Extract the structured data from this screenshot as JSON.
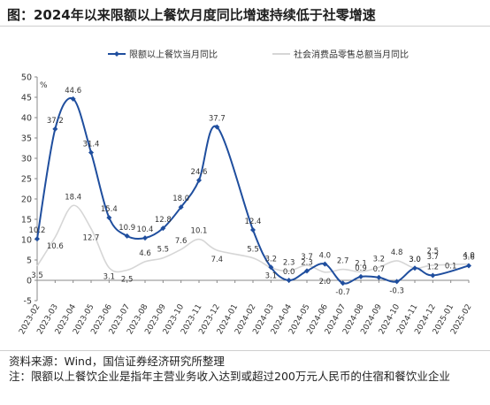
{
  "title": "图：2024年以来限额以上餐饮月度同比增速持续低于社零增速",
  "chart_data": {
    "type": "line",
    "title": "",
    "xlabel": "",
    "ylabel": "%",
    "ylim": [
      -5,
      50
    ],
    "yticks": [
      -5,
      0,
      5,
      10,
      15,
      20,
      25,
      30,
      35,
      40,
      45,
      50
    ],
    "grid": false,
    "legend_position": "top",
    "categories": [
      "2023-02",
      "2023-03",
      "2023-04",
      "2023-05",
      "2023-06",
      "2023-07",
      "2023-08",
      "2023-09",
      "2023-10",
      "2023-11",
      "2023-12",
      "2024-01",
      "2024-02",
      "2024-03",
      "2024-04",
      "2024-05",
      "2024-06",
      "2024-07",
      "2024-08",
      "2024-09",
      "2024-10",
      "2024-11",
      "2024-12",
      "2025-01",
      "2025-02"
    ],
    "x_tick_labels": [
      "2023-02",
      "2023-03",
      "2023-04",
      "2023-05",
      "2023-06",
      "2023-07",
      "2023-08",
      "2023-09",
      "2023-10",
      "2023-11",
      "2023-12",
      "2024-01",
      "2024-02",
      "2024-03",
      "2024-04",
      "2024-05",
      "2024-06",
      "2024-07",
      "2024-08",
      "2024-09",
      "2024-10",
      "2024-11",
      "2024-12",
      "2025-01",
      "2025-02"
    ],
    "series": [
      {
        "name": "限额以上餐饮当月同比",
        "color": "#1f4e9e",
        "values": [
          10.2,
          37.2,
          44.6,
          31.4,
          15.4,
          10.9,
          10.4,
          12.8,
          18.0,
          24.6,
          37.7,
          null,
          12.4,
          3.2,
          0.0,
          2.3,
          4.0,
          -0.7,
          0.9,
          0.7,
          -0.3,
          3.0,
          1.2,
          null,
          3.6
        ],
        "labels": [
          "10.2",
          "37.2",
          "44.6",
          "31.4",
          "15.4",
          "10.9",
          "10.4",
          "12.8",
          "18.0",
          "24.6",
          "37.7",
          "",
          "12.4",
          "3.2",
          "0.0",
          "2.3",
          "4.0",
          "-0.7",
          "0.9",
          "0.7",
          "-0.3",
          "3.0",
          "1.2",
          "",
          "3.6"
        ]
      },
      {
        "name": "社会消费品零售总额当月同比",
        "color": "#d6d6d6",
        "values": [
          3.5,
          10.6,
          18.4,
          12.7,
          3.1,
          2.5,
          4.6,
          5.5,
          7.6,
          10.1,
          7.4,
          null,
          5.5,
          3.1,
          2.3,
          3.7,
          2.0,
          2.7,
          2.1,
          3.2,
          4.8,
          3.0,
          3.7,
          null,
          4.0
        ],
        "labels": [
          "3.5",
          "10.6",
          "18.4",
          "12.7",
          "3.1",
          "2.5",
          "4.6",
          "5.5",
          "7.6",
          "10.1",
          "7.4",
          "",
          "5.5",
          "3.1",
          "2.3",
          "3.7",
          "2.0",
          "2.7",
          "2.1",
          "3.2",
          "4.8",
          "3.0",
          "3.7",
          "",
          "4.0"
        ]
      }
    ],
    "extra_labels": [
      "2.5",
      "0.1"
    ]
  },
  "notes": {
    "source": "资料来源：Wind，国信证券经济研究所整理",
    "note": "注：限额以上餐饮企业是指年主营业务收入达到或超过200万元人民币的住宿和餐饮业企业"
  }
}
